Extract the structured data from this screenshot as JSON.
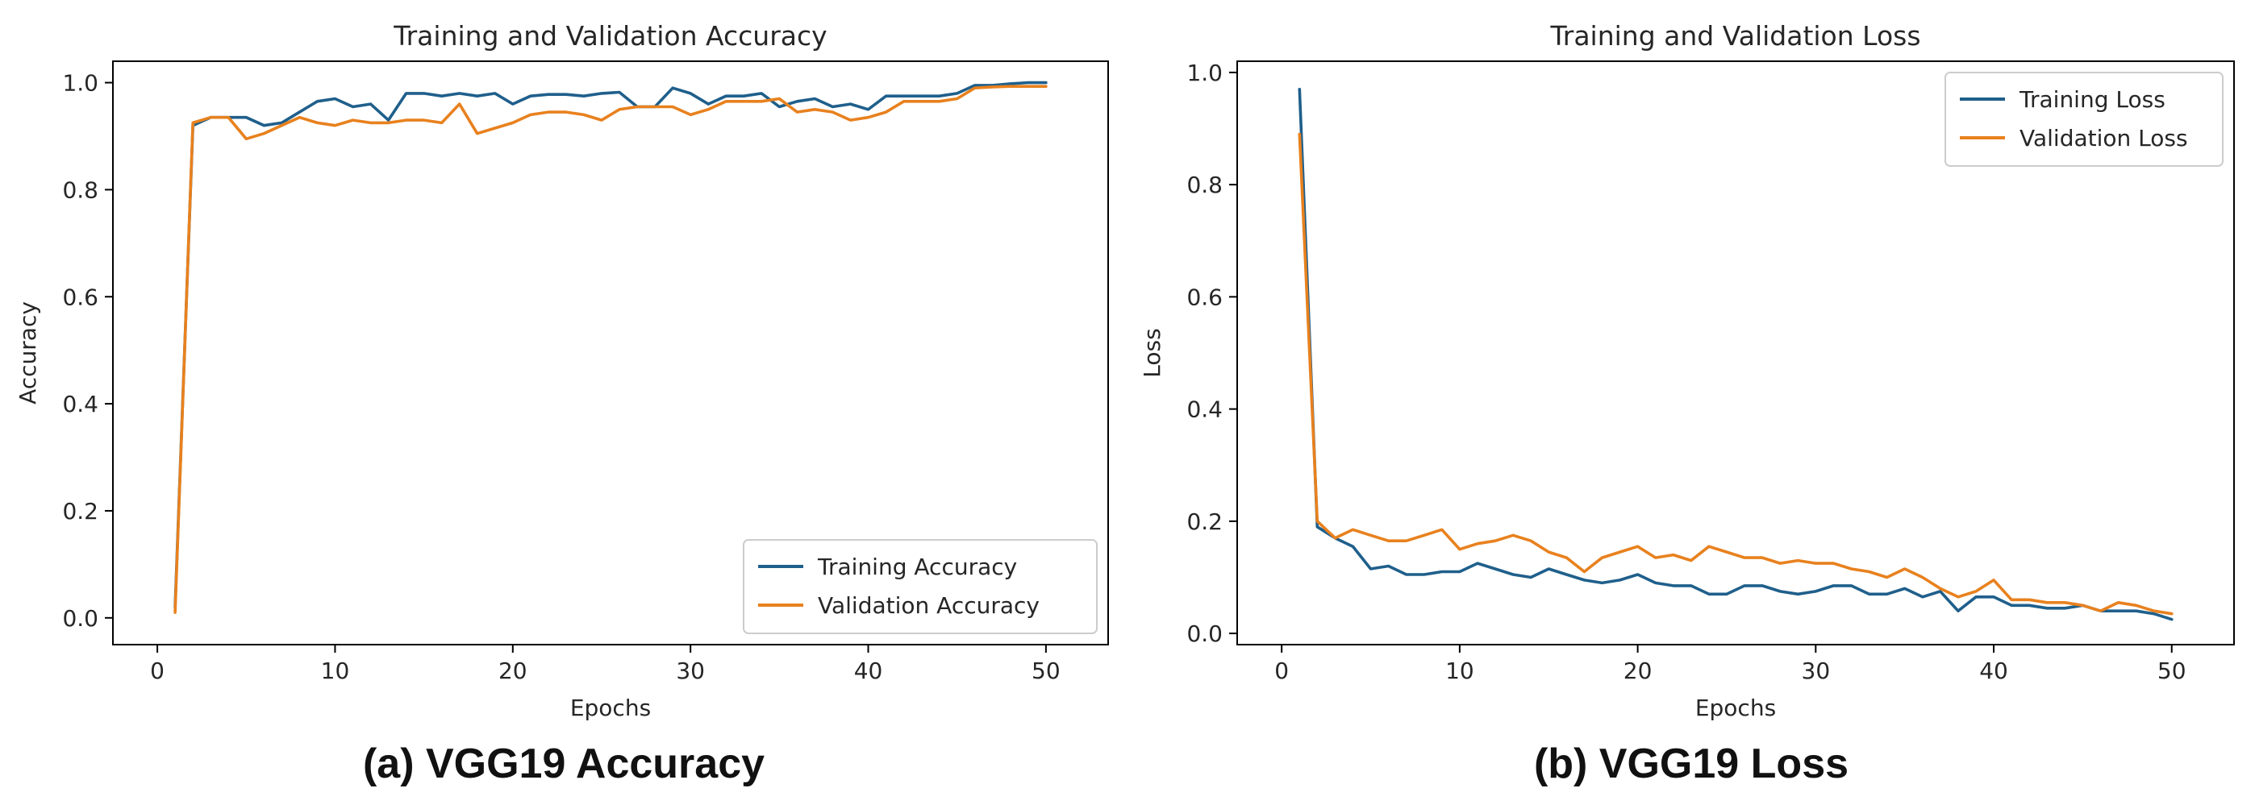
{
  "captions": {
    "a": "(a) VGG19 Accuracy",
    "b": "(b) VGG19 Loss"
  },
  "colors": {
    "train": "#1f5f8b",
    "val": "#e8811e",
    "axis": "#000000",
    "text": "#262626"
  },
  "chart_data": [
    {
      "type": "line",
      "title": "Training and Validation Accuracy",
      "xlabel": "Epochs",
      "ylabel": "Accuracy",
      "xlim": [
        -2.5,
        53.5
      ],
      "ylim": [
        -0.05,
        1.04
      ],
      "xticks": [
        0,
        10,
        20,
        30,
        40,
        50
      ],
      "xtick_labels": [
        "0",
        "10",
        "20",
        "30",
        "40",
        "50"
      ],
      "yticks": [
        0.0,
        0.2,
        0.4,
        0.6,
        0.8,
        1.0
      ],
      "ytick_labels": [
        "0.0",
        "0.2",
        "0.4",
        "0.6",
        "0.8",
        "1.0"
      ],
      "grid": false,
      "legend_position": "lower-right",
      "x": [
        1,
        2,
        3,
        4,
        5,
        6,
        7,
        8,
        9,
        10,
        11,
        12,
        13,
        14,
        15,
        16,
        17,
        18,
        19,
        20,
        21,
        22,
        23,
        24,
        25,
        26,
        27,
        28,
        29,
        30,
        31,
        32,
        33,
        34,
        35,
        36,
        37,
        38,
        39,
        40,
        41,
        42,
        43,
        44,
        45,
        46,
        47,
        48,
        49,
        50
      ],
      "series": [
        {
          "name": "Training Accuracy",
          "color": "#1f5f8b",
          "values": [
            0.02,
            0.92,
            0.935,
            0.935,
            0.935,
            0.92,
            0.925,
            0.945,
            0.965,
            0.97,
            0.955,
            0.96,
            0.93,
            0.98,
            0.98,
            0.975,
            0.98,
            0.975,
            0.98,
            0.96,
            0.975,
            0.978,
            0.978,
            0.975,
            0.98,
            0.982,
            0.955,
            0.955,
            0.99,
            0.98,
            0.96,
            0.975,
            0.975,
            0.98,
            0.955,
            0.965,
            0.97,
            0.955,
            0.96,
            0.95,
            0.975,
            0.975,
            0.975,
            0.975,
            0.98,
            0.995,
            0.995,
            0.998,
            1.0,
            1.0
          ]
        },
        {
          "name": "Validation Accuracy",
          "color": "#e8811e",
          "values": [
            0.01,
            0.925,
            0.935,
            0.935,
            0.895,
            0.905,
            0.92,
            0.935,
            0.925,
            0.92,
            0.93,
            0.925,
            0.925,
            0.93,
            0.93,
            0.925,
            0.96,
            0.905,
            0.915,
            0.925,
            0.94,
            0.945,
            0.945,
            0.94,
            0.93,
            0.95,
            0.955,
            0.955,
            0.955,
            0.94,
            0.95,
            0.965,
            0.965,
            0.965,
            0.97,
            0.945,
            0.95,
            0.945,
            0.93,
            0.935,
            0.945,
            0.965,
            0.965,
            0.965,
            0.97,
            0.99,
            0.992,
            0.993,
            0.993,
            0.993
          ]
        }
      ]
    },
    {
      "type": "line",
      "title": "Training and Validation Loss",
      "xlabel": "Epochs",
      "ylabel": "Loss",
      "xlim": [
        -2.5,
        53.5
      ],
      "ylim": [
        -0.02,
        1.02
      ],
      "xticks": [
        0,
        10,
        20,
        30,
        40,
        50
      ],
      "xtick_labels": [
        "0",
        "10",
        "20",
        "30",
        "40",
        "50"
      ],
      "yticks": [
        0.0,
        0.2,
        0.4,
        0.6,
        0.8,
        1.0
      ],
      "ytick_labels": [
        "0.0",
        "0.2",
        "0.4",
        "0.6",
        "0.8",
        "1.0"
      ],
      "grid": false,
      "legend_position": "upper-right",
      "x": [
        1,
        2,
        3,
        4,
        5,
        6,
        7,
        8,
        9,
        10,
        11,
        12,
        13,
        14,
        15,
        16,
        17,
        18,
        19,
        20,
        21,
        22,
        23,
        24,
        25,
        26,
        27,
        28,
        29,
        30,
        31,
        32,
        33,
        34,
        35,
        36,
        37,
        38,
        39,
        40,
        41,
        42,
        43,
        44,
        45,
        46,
        47,
        48,
        49,
        50
      ],
      "series": [
        {
          "name": "Training Loss",
          "color": "#1f5f8b",
          "values": [
            0.97,
            0.19,
            0.17,
            0.155,
            0.115,
            0.12,
            0.105,
            0.105,
            0.11,
            0.11,
            0.125,
            0.115,
            0.105,
            0.1,
            0.115,
            0.105,
            0.095,
            0.09,
            0.095,
            0.105,
            0.09,
            0.085,
            0.085,
            0.07,
            0.07,
            0.085,
            0.085,
            0.075,
            0.07,
            0.075,
            0.085,
            0.085,
            0.07,
            0.07,
            0.08,
            0.065,
            0.075,
            0.04,
            0.065,
            0.065,
            0.05,
            0.05,
            0.045,
            0.045,
            0.05,
            0.04,
            0.04,
            0.04,
            0.035,
            0.025
          ]
        },
        {
          "name": "Validation Loss",
          "color": "#e8811e",
          "values": [
            0.89,
            0.2,
            0.17,
            0.185,
            0.175,
            0.165,
            0.165,
            0.175,
            0.185,
            0.15,
            0.16,
            0.165,
            0.175,
            0.165,
            0.145,
            0.135,
            0.11,
            0.135,
            0.145,
            0.155,
            0.135,
            0.14,
            0.13,
            0.155,
            0.145,
            0.135,
            0.135,
            0.125,
            0.13,
            0.125,
            0.125,
            0.115,
            0.11,
            0.1,
            0.115,
            0.1,
            0.08,
            0.065,
            0.075,
            0.095,
            0.06,
            0.06,
            0.055,
            0.055,
            0.05,
            0.04,
            0.055,
            0.05,
            0.04,
            0.035
          ]
        }
      ]
    }
  ]
}
